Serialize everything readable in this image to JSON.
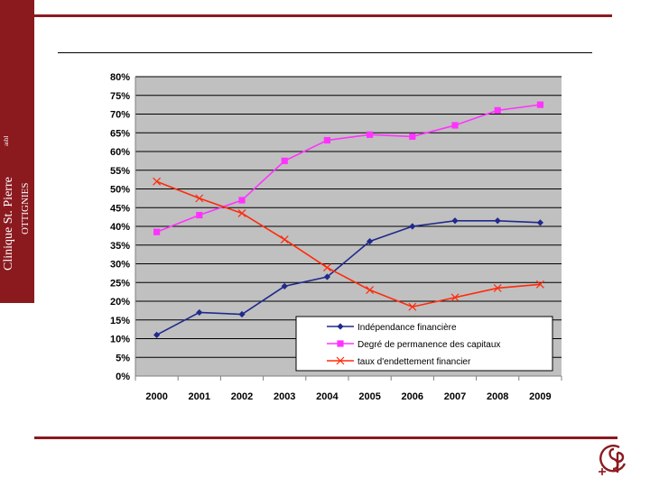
{
  "branding": {
    "clinic_name": "Clinique St. Pierre",
    "clinic_suffix": "asbl",
    "clinic_town": "OTTIGNIES"
  },
  "colors": {
    "brand": "#8b1a1f",
    "plot_background": "#c0c0c0",
    "series_blue": "#1f2a8c",
    "series_magenta": "#ff33ff",
    "series_red": "#ff2a0a"
  },
  "chart_data": {
    "type": "line",
    "x": [
      "2000",
      "2001",
      "2002",
      "2003",
      "2004",
      "2005",
      "2006",
      "2007",
      "2008",
      "2009"
    ],
    "y_ticks": [
      "0%",
      "5%",
      "10%",
      "15%",
      "20%",
      "25%",
      "30%",
      "35%",
      "40%",
      "45%",
      "50%",
      "55%",
      "60%",
      "65%",
      "70%",
      "75%",
      "80%"
    ],
    "ylim": [
      0,
      80
    ],
    "grid": true,
    "legend_position": "bottom-right",
    "series": [
      {
        "name": "Indépendance financière",
        "values": [
          11,
          17,
          16.5,
          24,
          26.5,
          36,
          40,
          41.5,
          41.5,
          41
        ],
        "color": "#1f2a8c",
        "marker": "diamond"
      },
      {
        "name": "Degré de permanence des capitaux",
        "values": [
          38.5,
          43,
          47,
          57.5,
          63,
          64.5,
          64,
          67,
          71,
          72.5
        ],
        "color": "#ff33ff",
        "marker": "square"
      },
      {
        "name": "taux d'endettement financier",
        "values": [
          52,
          47.5,
          43.5,
          36.5,
          29,
          23,
          18.5,
          21,
          23.5,
          24.5
        ],
        "color": "#ff2a0a",
        "marker": "x"
      }
    ]
  }
}
